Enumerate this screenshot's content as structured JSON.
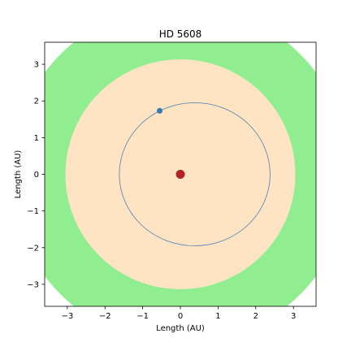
{
  "chart_data": {
    "type": "scatter",
    "title": "HD 5608",
    "xlabel": "Length (AU)",
    "ylabel": "Length (AU)",
    "xlim": [
      -3.6,
      3.6
    ],
    "ylim": [
      -3.6,
      3.6
    ],
    "xticks": [
      -3,
      -2,
      -1,
      0,
      1,
      2,
      3
    ],
    "yticks": [
      -3,
      -2,
      -1,
      0,
      1,
      2,
      3
    ],
    "xtick_labels": [
      "−3",
      "−2",
      "−1",
      "0",
      "1",
      "2",
      "3"
    ],
    "ytick_labels": [
      "−3",
      "−2",
      "−1",
      "0",
      "1",
      "2",
      "3"
    ],
    "grid": false,
    "zones": [
      {
        "shape": "circle",
        "cx": 0,
        "cy": 0,
        "r": 4.5,
        "color": "#90ee90"
      },
      {
        "shape": "circle",
        "cx": 0,
        "cy": 0,
        "r": 3.05,
        "color": "#ffe4c4"
      }
    ],
    "orbit": {
      "shape": "ellipse",
      "cx": 0.38,
      "cy": 0,
      "rx": 2.0,
      "ry": 1.95,
      "color": "#4a7fb0"
    },
    "star": {
      "x": 0,
      "y": 0,
      "color": "#b22222"
    },
    "planet": {
      "x": -0.55,
      "y": 1.73,
      "color": "#3a78b0"
    }
  }
}
